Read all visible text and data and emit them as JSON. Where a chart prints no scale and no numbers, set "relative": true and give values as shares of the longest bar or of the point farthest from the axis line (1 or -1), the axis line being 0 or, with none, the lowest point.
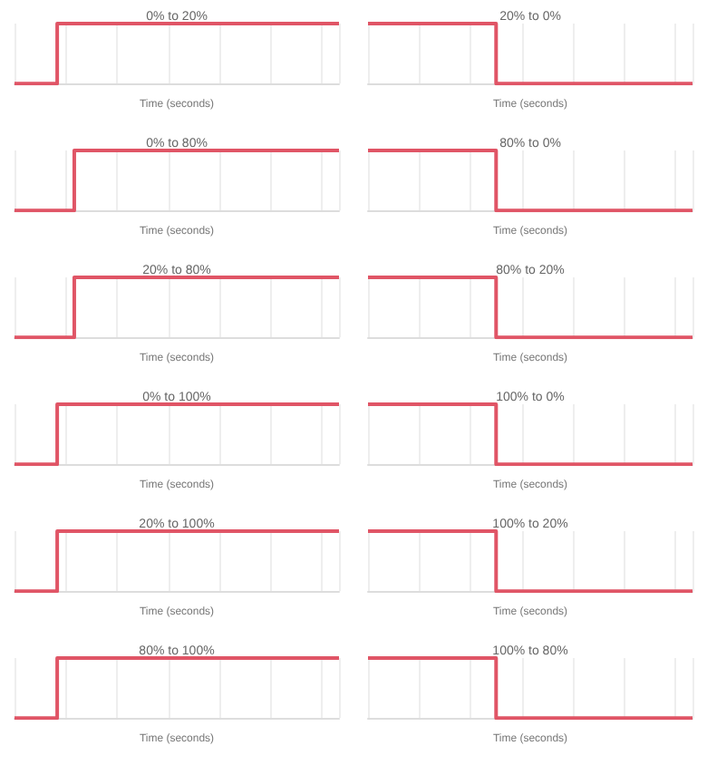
{
  "chart_data": [
    {
      "type": "step",
      "title": "0% to 20%",
      "xlabel": "Time (seconds)",
      "relative": true,
      "grid": "x",
      "color": "#e05566",
      "categories": [
        null,
        null,
        null,
        null,
        null,
        null,
        null,
        null,
        null,
        null,
        null,
        null,
        null,
        null,
        null,
        null,
        null,
        null,
        null,
        null
      ],
      "values": [
        0,
        0,
        0,
        1,
        1,
        1,
        1,
        1,
        1,
        1,
        1,
        1,
        1,
        1,
        1,
        1,
        1,
        1,
        1,
        1
      ]
    },
    {
      "type": "step",
      "title": "20% to 0%",
      "xlabel": "Time (seconds)",
      "relative": true,
      "grid": "x",
      "color": "#e05566",
      "categories": [
        null,
        null,
        null,
        null,
        null,
        null,
        null,
        null,
        null,
        null,
        null,
        null,
        null,
        null,
        null,
        null,
        null,
        null,
        null,
        null
      ],
      "values": [
        1,
        1,
        1,
        1,
        1,
        1,
        1,
        1,
        0,
        0,
        0,
        0,
        0,
        0,
        0,
        0,
        0,
        0,
        0,
        0
      ]
    },
    {
      "type": "step",
      "title": "0% to 80%",
      "xlabel": "Time (seconds)",
      "relative": true,
      "grid": "x",
      "color": "#e05566",
      "categories": [
        null,
        null,
        null,
        null,
        null,
        null,
        null,
        null,
        null,
        null,
        null,
        null,
        null,
        null,
        null,
        null,
        null,
        null,
        null,
        null
      ],
      "values": [
        0,
        0,
        0,
        0,
        1,
        1,
        1,
        1,
        1,
        1,
        1,
        1,
        1,
        1,
        1,
        1,
        1,
        1,
        1,
        1
      ]
    },
    {
      "type": "step",
      "title": "80% to 0%",
      "xlabel": "Time (seconds)",
      "relative": true,
      "grid": "x",
      "color": "#e05566",
      "categories": [
        null,
        null,
        null,
        null,
        null,
        null,
        null,
        null,
        null,
        null,
        null,
        null,
        null,
        null,
        null,
        null,
        null,
        null,
        null,
        null
      ],
      "values": [
        1,
        1,
        1,
        1,
        1,
        1,
        1,
        1,
        0,
        0,
        0,
        0,
        0,
        0,
        0,
        0,
        0,
        0,
        0,
        0
      ]
    },
    {
      "type": "step",
      "title": "20% to 80%",
      "xlabel": "Time (seconds)",
      "relative": true,
      "grid": "x",
      "color": "#e05566",
      "categories": [
        null,
        null,
        null,
        null,
        null,
        null,
        null,
        null,
        null,
        null,
        null,
        null,
        null,
        null,
        null,
        null,
        null,
        null,
        null,
        null
      ],
      "values": [
        0,
        0,
        0,
        0,
        1,
        1,
        1,
        1,
        1,
        1,
        1,
        1,
        1,
        1,
        1,
        1,
        1,
        1,
        1,
        1
      ]
    },
    {
      "type": "step",
      "title": "80% to 20%",
      "xlabel": "Time (seconds)",
      "relative": true,
      "grid": "x",
      "color": "#e05566",
      "categories": [
        null,
        null,
        null,
        null,
        null,
        null,
        null,
        null,
        null,
        null,
        null,
        null,
        null,
        null,
        null,
        null,
        null,
        null,
        null,
        null
      ],
      "values": [
        1,
        1,
        1,
        1,
        1,
        1,
        1,
        1,
        0,
        0,
        0,
        0,
        0,
        0,
        0,
        0,
        0,
        0,
        0,
        0
      ]
    },
    {
      "type": "step",
      "title": "0% to 100%",
      "xlabel": "Time (seconds)",
      "relative": true,
      "grid": "x",
      "color": "#e05566",
      "categories": [
        null,
        null,
        null,
        null,
        null,
        null,
        null,
        null,
        null,
        null,
        null,
        null,
        null,
        null,
        null,
        null,
        null,
        null,
        null,
        null
      ],
      "values": [
        0,
        0,
        0,
        1,
        1,
        1,
        1,
        1,
        1,
        1,
        1,
        1,
        1,
        1,
        1,
        1,
        1,
        1,
        1,
        1
      ]
    },
    {
      "type": "step",
      "title": "100% to 0%",
      "xlabel": "Time (seconds)",
      "relative": true,
      "grid": "x",
      "color": "#e05566",
      "categories": [
        null,
        null,
        null,
        null,
        null,
        null,
        null,
        null,
        null,
        null,
        null,
        null,
        null,
        null,
        null,
        null,
        null,
        null,
        null,
        null
      ],
      "values": [
        1,
        1,
        1,
        1,
        1,
        1,
        1,
        1,
        0,
        0,
        0,
        0,
        0,
        0,
        0,
        0,
        0,
        0,
        0,
        0
      ]
    },
    {
      "type": "step",
      "title": "20% to 100%",
      "xlabel": "Time (seconds)",
      "relative": true,
      "grid": "x",
      "color": "#e05566",
      "categories": [
        null,
        null,
        null,
        null,
        null,
        null,
        null,
        null,
        null,
        null,
        null,
        null,
        null,
        null,
        null,
        null,
        null,
        null,
        null,
        null
      ],
      "values": [
        0,
        0,
        0,
        1,
        1,
        1,
        1,
        1,
        1,
        1,
        1,
        1,
        1,
        1,
        1,
        1,
        1,
        1,
        1,
        1
      ]
    },
    {
      "type": "step",
      "title": "100% to 20%",
      "xlabel": "Time (seconds)",
      "relative": true,
      "grid": "x",
      "color": "#e05566",
      "categories": [
        null,
        null,
        null,
        null,
        null,
        null,
        null,
        null,
        null,
        null,
        null,
        null,
        null,
        null,
        null,
        null,
        null,
        null,
        null,
        null
      ],
      "values": [
        1,
        1,
        1,
        1,
        1,
        1,
        1,
        1,
        0,
        0,
        0,
        0,
        0,
        0,
        0,
        0,
        0,
        0,
        0,
        0
      ]
    },
    {
      "type": "step",
      "title": "80% to 100%",
      "xlabel": "Time (seconds)",
      "relative": true,
      "grid": "x",
      "color": "#e05566",
      "categories": [
        null,
        null,
        null,
        null,
        null,
        null,
        null,
        null,
        null,
        null,
        null,
        null,
        null,
        null,
        null,
        null,
        null,
        null,
        null,
        null
      ],
      "values": [
        0,
        0,
        0,
        1,
        1,
        1,
        1,
        1,
        1,
        1,
        1,
        1,
        1,
        1,
        1,
        1,
        1,
        1,
        1,
        1
      ]
    },
    {
      "type": "step",
      "title": "100% to 80%",
      "xlabel": "Time (seconds)",
      "relative": true,
      "grid": "x",
      "color": "#e05566",
      "categories": [
        null,
        null,
        null,
        null,
        null,
        null,
        null,
        null,
        null,
        null,
        null,
        null,
        null,
        null,
        null,
        null,
        null,
        null,
        null,
        null
      ],
      "values": [
        1,
        1,
        1,
        1,
        1,
        1,
        1,
        1,
        0,
        0,
        0,
        0,
        0,
        0,
        0,
        0,
        0,
        0,
        0,
        0
      ]
    }
  ]
}
